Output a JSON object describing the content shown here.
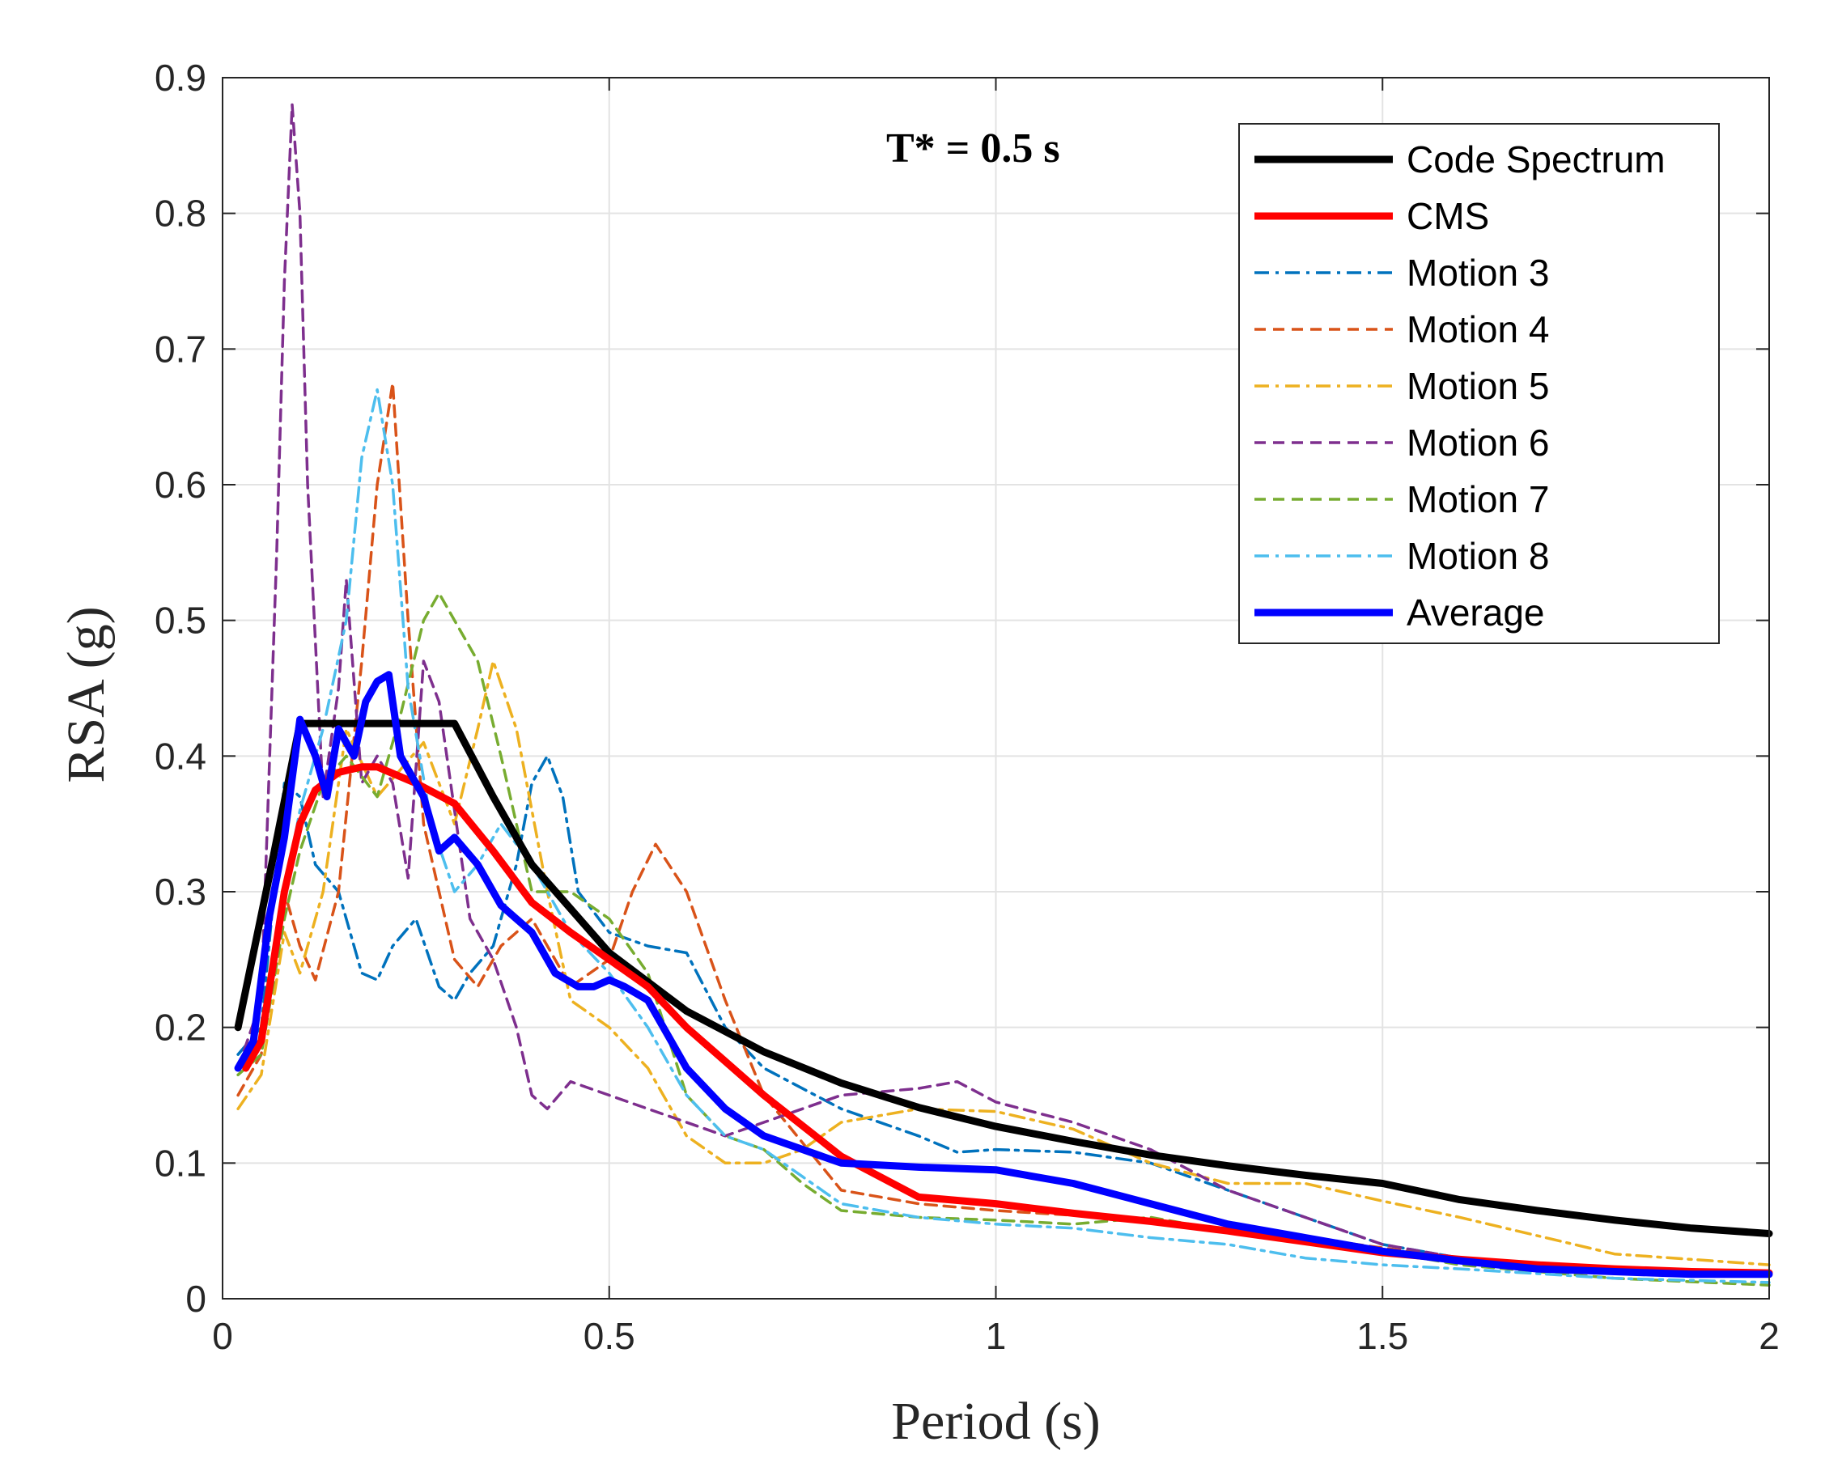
{
  "chart_data": {
    "type": "line",
    "title": "",
    "annotation": "T* = 0.5 s",
    "xlabel": "Period (s)",
    "ylabel": "RSA (g)",
    "xlim": [
      0,
      2
    ],
    "ylim": [
      0,
      0.9
    ],
    "xticks": [
      0,
      0.5,
      1,
      1.5,
      2
    ],
    "xtick_labels": [
      "0",
      "0.5",
      "1",
      "1.5",
      "2"
    ],
    "yticks": [
      0,
      0.1,
      0.2,
      0.3,
      0.4,
      0.5,
      0.6,
      0.7,
      0.8,
      0.9
    ],
    "ytick_labels": [
      "0",
      "0.1",
      "0.2",
      "0.3",
      "0.4",
      "0.5",
      "0.6",
      "0.7",
      "0.8",
      "0.9"
    ],
    "grid": true,
    "legend_position": "top-right",
    "series": [
      {
        "name": "Code Spectrum",
        "color": "#000000",
        "dash": "solid",
        "weight": "thick",
        "x": [
          0.02,
          0.06,
          0.1,
          0.2,
          0.3,
          0.35,
          0.4,
          0.5,
          0.6,
          0.7,
          0.8,
          0.9,
          1.0,
          1.1,
          1.2,
          1.3,
          1.4,
          1.5,
          1.6,
          1.7,
          1.8,
          1.9,
          2.0
        ],
        "y": [
          0.2,
          0.31,
          0.424,
          0.424,
          0.424,
          0.37,
          0.32,
          0.255,
          0.212,
          0.182,
          0.159,
          0.141,
          0.127,
          0.116,
          0.106,
          0.098,
          0.091,
          0.085,
          0.073,
          0.065,
          0.058,
          0.052,
          0.048
        ]
      },
      {
        "name": "CMS",
        "color": "#ff0000",
        "dash": "solid",
        "weight": "thick",
        "x": [
          0.03,
          0.05,
          0.08,
          0.1,
          0.12,
          0.15,
          0.18,
          0.2,
          0.25,
          0.3,
          0.35,
          0.4,
          0.45,
          0.5,
          0.55,
          0.6,
          0.7,
          0.8,
          0.9,
          1.0,
          1.1,
          1.2,
          1.3,
          1.4,
          1.5,
          1.6,
          1.7,
          1.8,
          1.9,
          2.0
        ],
        "y": [
          0.17,
          0.19,
          0.3,
          0.35,
          0.375,
          0.388,
          0.392,
          0.392,
          0.38,
          0.365,
          0.33,
          0.292,
          0.27,
          0.25,
          0.23,
          0.2,
          0.15,
          0.105,
          0.075,
          0.07,
          0.063,
          0.057,
          0.05,
          0.042,
          0.034,
          0.029,
          0.025,
          0.022,
          0.02,
          0.019
        ]
      },
      {
        "name": "Motion 3",
        "color": "#0072bd",
        "dash": "dashdot",
        "weight": "thin",
        "x": [
          0.02,
          0.05,
          0.08,
          0.1,
          0.12,
          0.15,
          0.18,
          0.2,
          0.22,
          0.25,
          0.28,
          0.3,
          0.32,
          0.35,
          0.38,
          0.4,
          0.42,
          0.44,
          0.46,
          0.5,
          0.55,
          0.6,
          0.65,
          0.7,
          0.8,
          0.9,
          0.95,
          1.0,
          1.1,
          1.2,
          1.3,
          1.4,
          1.5,
          1.6,
          1.8,
          2.0
        ],
        "y": [
          0.18,
          0.2,
          0.38,
          0.37,
          0.32,
          0.3,
          0.24,
          0.235,
          0.26,
          0.28,
          0.23,
          0.22,
          0.24,
          0.26,
          0.32,
          0.38,
          0.4,
          0.37,
          0.3,
          0.27,
          0.26,
          0.255,
          0.2,
          0.17,
          0.14,
          0.12,
          0.108,
          0.11,
          0.108,
          0.1,
          0.08,
          0.06,
          0.04,
          0.03,
          0.022,
          0.02
        ]
      },
      {
        "name": "Motion 4",
        "color": "#d95319",
        "dash": "dashed",
        "weight": "thin",
        "x": [
          0.02,
          0.05,
          0.08,
          0.1,
          0.12,
          0.15,
          0.18,
          0.2,
          0.22,
          0.24,
          0.26,
          0.28,
          0.3,
          0.33,
          0.36,
          0.4,
          0.45,
          0.5,
          0.53,
          0.56,
          0.6,
          0.65,
          0.7,
          0.8,
          0.9,
          1.0,
          1.2,
          1.4,
          1.6,
          1.8,
          2.0
        ],
        "y": [
          0.15,
          0.18,
          0.3,
          0.26,
          0.235,
          0.3,
          0.47,
          0.6,
          0.675,
          0.5,
          0.35,
          0.3,
          0.25,
          0.23,
          0.26,
          0.28,
          0.23,
          0.25,
          0.3,
          0.335,
          0.3,
          0.22,
          0.15,
          0.08,
          0.07,
          0.065,
          0.058,
          0.045,
          0.03,
          0.022,
          0.02
        ]
      },
      {
        "name": "Motion 5",
        "color": "#edb120",
        "dash": "dashdot",
        "weight": "thin",
        "x": [
          0.02,
          0.05,
          0.08,
          0.1,
          0.13,
          0.16,
          0.2,
          0.23,
          0.26,
          0.3,
          0.33,
          0.35,
          0.38,
          0.42,
          0.45,
          0.5,
          0.55,
          0.6,
          0.65,
          0.7,
          0.75,
          0.8,
          0.9,
          1.0,
          1.1,
          1.2,
          1.3,
          1.4,
          1.5,
          1.6,
          1.8,
          2.0
        ],
        "y": [
          0.14,
          0.165,
          0.27,
          0.24,
          0.3,
          0.42,
          0.37,
          0.39,
          0.41,
          0.35,
          0.42,
          0.47,
          0.42,
          0.3,
          0.22,
          0.2,
          0.17,
          0.12,
          0.1,
          0.1,
          0.11,
          0.13,
          0.14,
          0.138,
          0.125,
          0.1,
          0.085,
          0.085,
          0.072,
          0.06,
          0.033,
          0.025
        ]
      },
      {
        "name": "Motion 6",
        "color": "#7e2f8e",
        "dash": "dashed",
        "weight": "thin",
        "x": [
          0.02,
          0.05,
          0.07,
          0.08,
          0.09,
          0.1,
          0.11,
          0.13,
          0.15,
          0.16,
          0.18,
          0.2,
          0.22,
          0.24,
          0.26,
          0.28,
          0.3,
          0.32,
          0.35,
          0.38,
          0.4,
          0.42,
          0.45,
          0.5,
          0.55,
          0.6,
          0.65,
          0.7,
          0.8,
          0.9,
          0.95,
          1.0,
          1.1,
          1.2,
          1.3,
          1.4,
          1.5,
          1.6,
          1.8,
          2.0
        ],
        "y": [
          0.17,
          0.22,
          0.55,
          0.75,
          0.88,
          0.8,
          0.6,
          0.37,
          0.45,
          0.53,
          0.38,
          0.4,
          0.38,
          0.31,
          0.47,
          0.44,
          0.36,
          0.28,
          0.25,
          0.2,
          0.15,
          0.14,
          0.16,
          0.15,
          0.14,
          0.13,
          0.12,
          0.13,
          0.15,
          0.155,
          0.16,
          0.145,
          0.13,
          0.11,
          0.08,
          0.06,
          0.04,
          0.03,
          0.022,
          0.02
        ]
      },
      {
        "name": "Motion 7",
        "color": "#77ac30",
        "dash": "dashed",
        "weight": "thin",
        "x": [
          0.02,
          0.05,
          0.08,
          0.1,
          0.13,
          0.16,
          0.2,
          0.23,
          0.26,
          0.28,
          0.3,
          0.33,
          0.36,
          0.4,
          0.45,
          0.5,
          0.55,
          0.6,
          0.65,
          0.7,
          0.75,
          0.8,
          0.9,
          1.0,
          1.1,
          1.2,
          1.3,
          1.4,
          1.5,
          1.6,
          1.8,
          2.0
        ],
        "y": [
          0.165,
          0.18,
          0.28,
          0.33,
          0.38,
          0.4,
          0.37,
          0.43,
          0.5,
          0.52,
          0.5,
          0.47,
          0.4,
          0.3,
          0.3,
          0.28,
          0.24,
          0.15,
          0.12,
          0.11,
          0.085,
          0.065,
          0.06,
          0.058,
          0.055,
          0.06,
          0.05,
          0.042,
          0.035,
          0.025,
          0.015,
          0.01
        ]
      },
      {
        "name": "Motion 8",
        "color": "#4dbeee",
        "dash": "dashdot",
        "weight": "thin",
        "x": [
          0.02,
          0.05,
          0.08,
          0.1,
          0.13,
          0.16,
          0.18,
          0.2,
          0.22,
          0.24,
          0.27,
          0.3,
          0.33,
          0.36,
          0.4,
          0.45,
          0.5,
          0.55,
          0.6,
          0.65,
          0.7,
          0.75,
          0.8,
          0.9,
          1.0,
          1.1,
          1.2,
          1.3,
          1.4,
          1.5,
          1.6,
          1.8,
          2.0
        ],
        "y": [
          0.17,
          0.19,
          0.3,
          0.36,
          0.42,
          0.5,
          0.62,
          0.67,
          0.6,
          0.45,
          0.35,
          0.3,
          0.32,
          0.35,
          0.32,
          0.27,
          0.24,
          0.2,
          0.15,
          0.12,
          0.11,
          0.09,
          0.07,
          0.06,
          0.055,
          0.052,
          0.045,
          0.04,
          0.03,
          0.025,
          0.022,
          0.015,
          0.012
        ]
      },
      {
        "name": "Average",
        "color": "#0000ff",
        "dash": "solid",
        "weight": "thick",
        "x": [
          0.02,
          0.04,
          0.06,
          0.08,
          0.1,
          0.12,
          0.135,
          0.15,
          0.17,
          0.185,
          0.2,
          0.215,
          0.23,
          0.24,
          0.26,
          0.28,
          0.3,
          0.33,
          0.36,
          0.4,
          0.43,
          0.46,
          0.48,
          0.5,
          0.52,
          0.55,
          0.58,
          0.6,
          0.65,
          0.7,
          0.8,
          0.9,
          1.0,
          1.1,
          1.2,
          1.3,
          1.4,
          1.5,
          1.6,
          1.7,
          1.8,
          1.9,
          2.0
        ],
        "y": [
          0.17,
          0.19,
          0.28,
          0.34,
          0.427,
          0.4,
          0.37,
          0.42,
          0.4,
          0.44,
          0.455,
          0.46,
          0.4,
          0.39,
          0.37,
          0.33,
          0.34,
          0.32,
          0.29,
          0.27,
          0.24,
          0.23,
          0.23,
          0.235,
          0.23,
          0.22,
          0.19,
          0.17,
          0.14,
          0.12,
          0.1,
          0.097,
          0.095,
          0.085,
          0.07,
          0.055,
          0.045,
          0.035,
          0.028,
          0.022,
          0.02,
          0.018,
          0.018
        ]
      }
    ]
  }
}
